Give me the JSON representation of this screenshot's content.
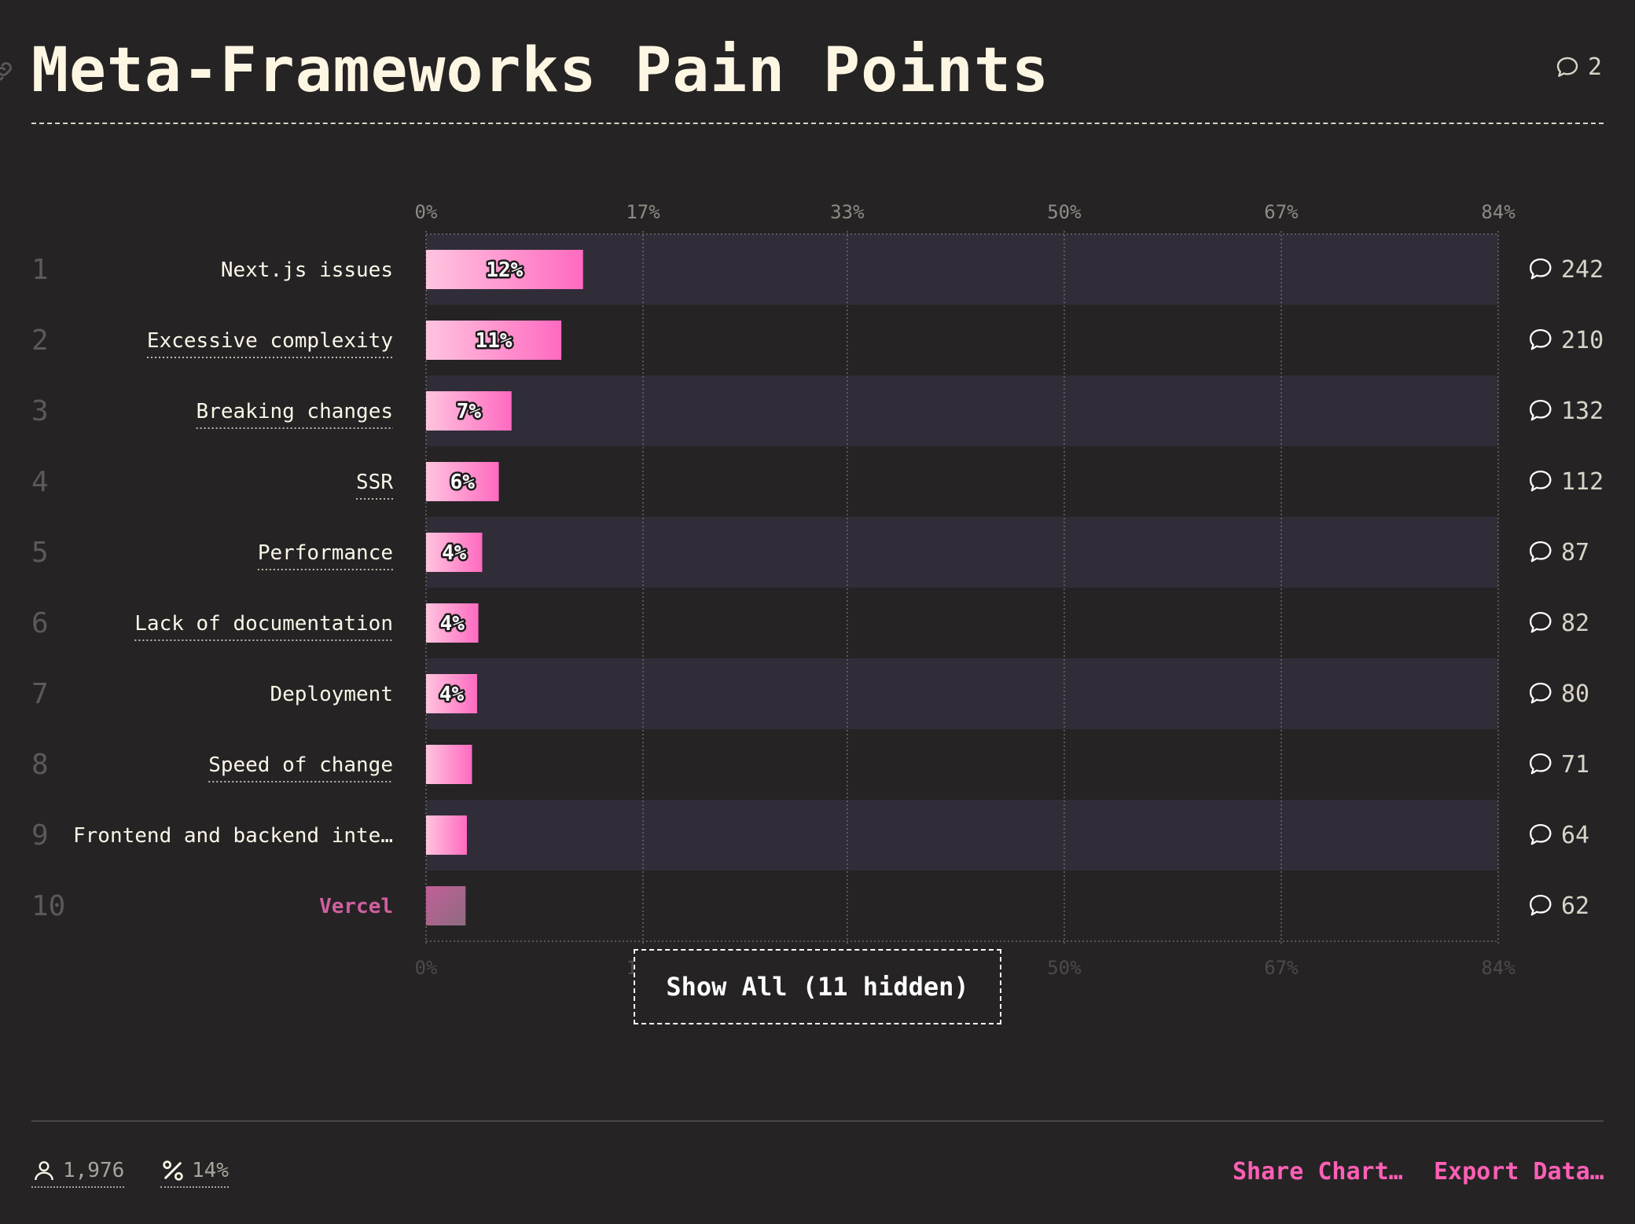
{
  "header": {
    "title": "Meta-Frameworks Pain Points",
    "comment_count": "2"
  },
  "chart_data": {
    "type": "bar",
    "orientation": "horizontal",
    "xlim": [
      0,
      84
    ],
    "tick_labels": [
      "0%",
      "17%",
      "33%",
      "50%",
      "67%",
      "84%"
    ],
    "tick_values": [
      0,
      17,
      33,
      50,
      67,
      84
    ],
    "categories": [
      "Next.js issues",
      "Excessive complexity",
      "Breaking changes",
      "SSR",
      "Performance",
      "Lack of documentation",
      "Deployment",
      "Speed of change",
      "Frontend and backend inte…",
      "Vercel"
    ],
    "values": [
      12.3,
      10.6,
      6.7,
      5.7,
      4.4,
      4.1,
      4.0,
      3.6,
      3.2,
      3.1
    ],
    "value_labels": [
      "12%",
      "11%",
      "7%",
      "6%",
      "4%",
      "4%",
      "4%",
      "",
      "",
      ""
    ],
    "comments": [
      "242",
      "210",
      "132",
      "112",
      "87",
      "82",
      "80",
      "71",
      "64",
      "62"
    ],
    "ranks": [
      "1",
      "2",
      "3",
      "4",
      "5",
      "6",
      "7",
      "8",
      "9",
      "10"
    ],
    "highlighted": "Vercel",
    "grid": true,
    "colors": {
      "bar_start": "#ffc4df",
      "bar_end": "#ff6ac0",
      "highlight": "#c25f98",
      "row_band": "#312d38"
    }
  },
  "show_all_label": "Show All (11 hidden)",
  "footer": {
    "respondents": "1,976",
    "percentage": "14%",
    "share_label": "Share Chart…",
    "export_label": "Export Data…"
  }
}
